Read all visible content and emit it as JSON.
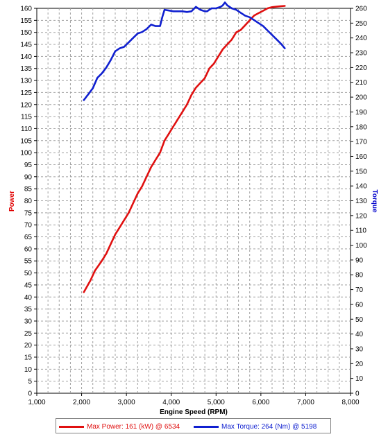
{
  "chart_data": {
    "type": "line",
    "xlabel": "Engine Speed (RPM)",
    "xlim": [
      1000,
      8000
    ],
    "xticks": [
      "1,000",
      "2,000",
      "3,000",
      "4,000",
      "5,000",
      "6,000",
      "7,000",
      "8,000"
    ],
    "ylabel": "Power",
    "ylim": [
      0,
      160
    ],
    "y2label": "Torque",
    "y2lim": [
      0,
      260
    ],
    "grid": true,
    "legend_position": "bottom",
    "ylabel_color": "#e00000",
    "y2label_color": "#0000cc",
    "series": [
      {
        "name": "Max Power: 161 (kW) @ 6534",
        "axis": "left",
        "color": "#e01010",
        "x": [
          2050,
          2200,
          2300,
          2450,
          2550,
          2650,
          2750,
          2850,
          2950,
          3050,
          3150,
          3250,
          3350,
          3450,
          3550,
          3650,
          3750,
          3850,
          3950,
          4050,
          4150,
          4250,
          4350,
          4450,
          4550,
          4650,
          4750,
          4850,
          4950,
          5050,
          5150,
          5250,
          5350,
          5450,
          5550,
          5650,
          5750,
          5850,
          5950,
          6050,
          6150,
          6250,
          6350,
          6450,
          6534
        ],
        "y": [
          42,
          47,
          51,
          55,
          58,
          62,
          66,
          69,
          72,
          75,
          79,
          83,
          86,
          90,
          94,
          97,
          100,
          105,
          108,
          111,
          114,
          117,
          120,
          124,
          127,
          129,
          131,
          135,
          137,
          140,
          143,
          145,
          147,
          150,
          151,
          153,
          155,
          157,
          158,
          159,
          160,
          160.5,
          160.7,
          160.9,
          161
        ]
      },
      {
        "name": "Max Torque: 264 (Nm) @ 5198",
        "axis": "right",
        "color": "#1020d0",
        "x": [
          2050,
          2150,
          2250,
          2350,
          2450,
          2550,
          2650,
          2750,
          2850,
          2950,
          3050,
          3150,
          3250,
          3350,
          3450,
          3550,
          3650,
          3750,
          3800,
          3850,
          3950,
          4050,
          4150,
          4250,
          4350,
          4450,
          4550,
          4650,
          4750,
          4800,
          4850,
          4900,
          5000,
          5100,
          5150,
          5198,
          5250,
          5350,
          5450,
          5550,
          5650,
          5750,
          5850,
          5950,
          6050,
          6150,
          6250,
          6350,
          6450,
          6534
        ],
        "y": [
          198,
          202,
          206,
          213,
          216,
          220,
          225,
          231,
          233,
          234,
          237,
          240,
          243,
          244,
          246,
          249,
          248,
          248,
          254,
          259,
          258.5,
          258,
          258,
          258,
          257.5,
          258,
          261,
          259,
          258,
          258,
          259,
          260,
          260,
          261,
          262,
          264,
          262,
          260,
          259,
          257,
          255,
          254,
          252,
          250,
          248,
          245,
          242,
          239,
          236,
          233
        ]
      }
    ]
  }
}
